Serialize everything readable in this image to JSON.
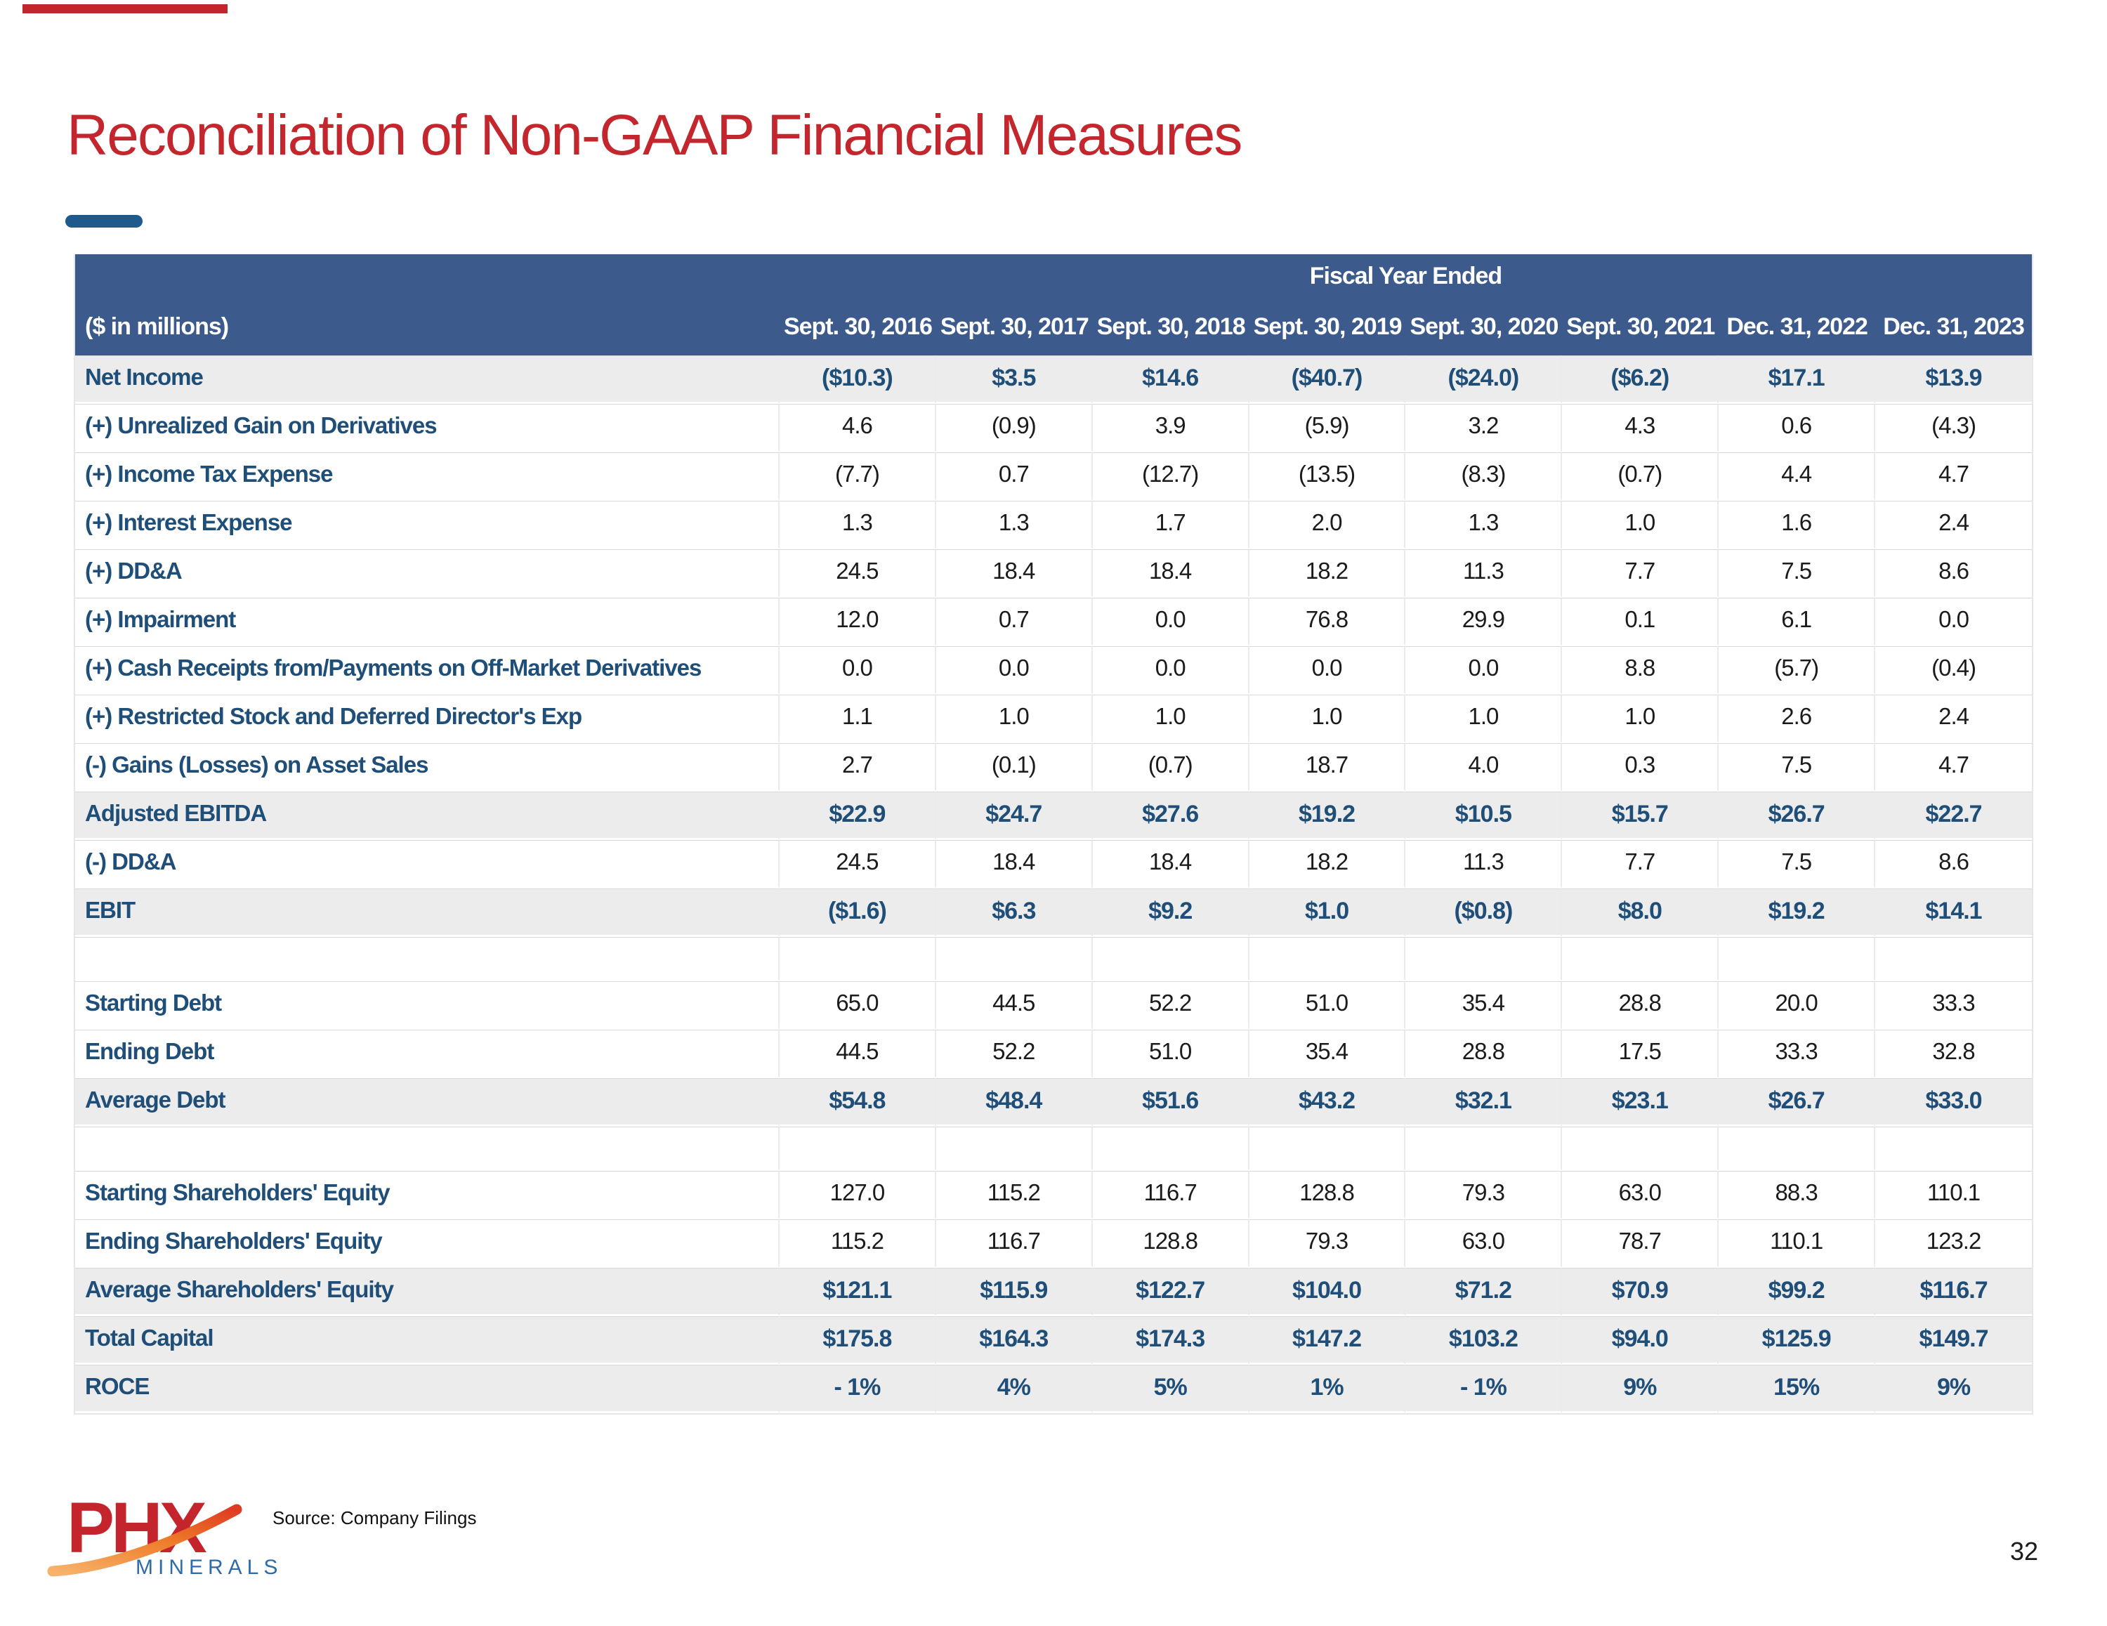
{
  "title": "Reconciliation of Non-GAAP Financial Measures",
  "source": "Source: Company Filings",
  "page": {
    "number": "32"
  },
  "logo": {
    "text": "PHX",
    "subtext": "MINERALS",
    "swoosh_icon": "orange-arc-swoosh"
  },
  "colors": {
    "title_red": "#C3262C",
    "topbar_red": "#C0262B",
    "header_navy": "#3C5A8C",
    "accent_blue": "#1F4E79",
    "dash_blue": "#1E5A8B",
    "band_gray": "#ECECEC",
    "logo_red": "#C4252C",
    "logo_blue": "#2E6BA8",
    "logo_orange": "#E8641F"
  },
  "table": {
    "group_header": "Fiscal Year Ended",
    "unit_label": "($ in millions)",
    "columns": [
      "Sept. 30, 2016",
      "Sept. 30, 2017",
      "Sept. 30, 2018",
      "Sept. 30, 2019",
      "Sept. 30, 2020",
      "Sept. 30, 2021",
      "Dec. 31, 2022",
      "Dec. 31, 2023"
    ],
    "rows": [
      {
        "label": "Net Income",
        "style": "highlight",
        "values": [
          "($10.3)",
          "$3.5",
          "$14.6",
          "($40.7)",
          "($24.0)",
          "($6.2)",
          "$17.1",
          "$13.9"
        ]
      },
      {
        "label": "(+) Unrealized Gain on Derivatives",
        "style": "normal",
        "values": [
          "4.6",
          "(0.9)",
          "3.9",
          "(5.9)",
          "3.2",
          "4.3",
          "0.6",
          "(4.3)"
        ]
      },
      {
        "label": "(+) Income Tax Expense",
        "style": "normal",
        "values": [
          "(7.7)",
          "0.7",
          "(12.7)",
          "(13.5)",
          "(8.3)",
          "(0.7)",
          "4.4",
          "4.7"
        ]
      },
      {
        "label": "(+) Interest Expense",
        "style": "normal",
        "values": [
          "1.3",
          "1.3",
          "1.7",
          "2.0",
          "1.3",
          "1.0",
          "1.6",
          "2.4"
        ]
      },
      {
        "label": "(+) DD&A",
        "style": "normal",
        "values": [
          "24.5",
          "18.4",
          "18.4",
          "18.2",
          "11.3",
          "7.7",
          "7.5",
          "8.6"
        ]
      },
      {
        "label": "(+) Impairment",
        "style": "normal",
        "values": [
          "12.0",
          "0.7",
          "0.0",
          "76.8",
          "29.9",
          "0.1",
          "6.1",
          "0.0"
        ]
      },
      {
        "label": "(+) Cash Receipts from/Payments on Off-Market Derivatives",
        "style": "normal",
        "values": [
          "0.0",
          "0.0",
          "0.0",
          "0.0",
          "0.0",
          "8.8",
          "(5.7)",
          "(0.4)"
        ]
      },
      {
        "label": "(+) Restricted Stock and Deferred Director's Exp",
        "style": "normal",
        "values": [
          "1.1",
          "1.0",
          "1.0",
          "1.0",
          "1.0",
          "1.0",
          "2.6",
          "2.4"
        ]
      },
      {
        "label": "(-) Gains (Losses) on Asset Sales",
        "style": "normal",
        "values": [
          "2.7",
          "(0.1)",
          "(0.7)",
          "18.7",
          "4.0",
          "0.3",
          "7.5",
          "4.7"
        ]
      },
      {
        "label": "Adjusted EBITDA",
        "style": "highlight",
        "values": [
          "$22.9",
          "$24.7",
          "$27.6",
          "$19.2",
          "$10.5",
          "$15.7",
          "$26.7",
          "$22.7"
        ]
      },
      {
        "label": "(-) DD&A",
        "style": "normal",
        "values": [
          "24.5",
          "18.4",
          "18.4",
          "18.2",
          "11.3",
          "7.7",
          "7.5",
          "8.6"
        ]
      },
      {
        "label": "EBIT",
        "style": "highlight",
        "values": [
          "($1.6)",
          "$6.3",
          "$9.2",
          "$1.0",
          "($0.8)",
          "$8.0",
          "$19.2",
          "$14.1"
        ]
      },
      {
        "label": "",
        "style": "blank",
        "values": [
          "",
          "",
          "",
          "",
          "",
          "",
          "",
          ""
        ]
      },
      {
        "label": "Starting Debt",
        "style": "normal",
        "values": [
          "65.0",
          "44.5",
          "52.2",
          "51.0",
          "35.4",
          "28.8",
          "20.0",
          "33.3"
        ]
      },
      {
        "label": "Ending Debt",
        "style": "normal",
        "values": [
          "44.5",
          "52.2",
          "51.0",
          "35.4",
          "28.8",
          "17.5",
          "33.3",
          "32.8"
        ]
      },
      {
        "label": "Average Debt",
        "style": "highlight",
        "values": [
          "$54.8",
          "$48.4",
          "$51.6",
          "$43.2",
          "$32.1",
          "$23.1",
          "$26.7",
          "$33.0"
        ]
      },
      {
        "label": "",
        "style": "blank",
        "values": [
          "",
          "",
          "",
          "",
          "",
          "",
          "",
          ""
        ]
      },
      {
        "label": "Starting Shareholders' Equity",
        "style": "normal",
        "values": [
          "127.0",
          "115.2",
          "116.7",
          "128.8",
          "79.3",
          "63.0",
          "88.3",
          "110.1"
        ]
      },
      {
        "label": "Ending Shareholders' Equity",
        "style": "normal",
        "values": [
          "115.2",
          "116.7",
          "128.8",
          "79.3",
          "63.0",
          "78.7",
          "110.1",
          "123.2"
        ]
      },
      {
        "label": "Average Shareholders' Equity",
        "style": "highlight",
        "values": [
          "$121.1",
          "$115.9",
          "$122.7",
          "$104.0",
          "$71.2",
          "$70.9",
          "$99.2",
          "$116.7"
        ]
      },
      {
        "label": "Total Capital",
        "style": "highlight",
        "values": [
          "$175.8",
          "$164.3",
          "$174.3",
          "$147.2",
          "$103.2",
          "$94.0",
          "$125.9",
          "$149.7"
        ]
      },
      {
        "label": "ROCE",
        "style": "highlight",
        "values": [
          "- 1%",
          "4%",
          "5%",
          "1%",
          "- 1%",
          "9%",
          "15%",
          "9%"
        ]
      }
    ]
  }
}
